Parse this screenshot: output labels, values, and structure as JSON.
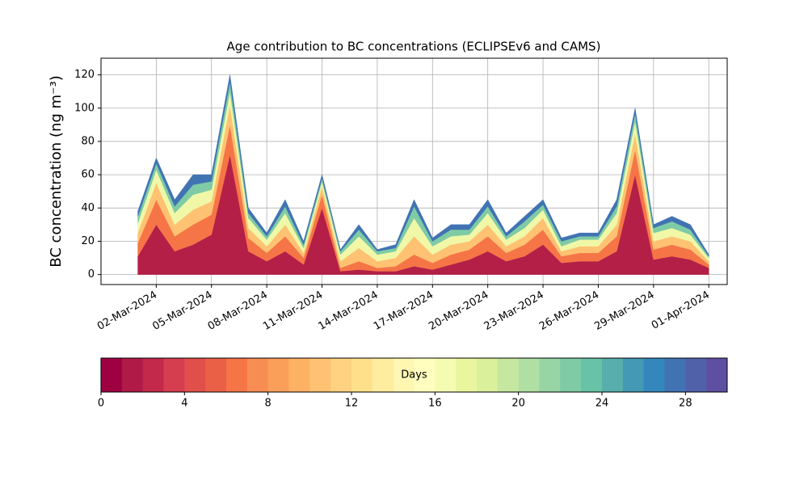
{
  "chart_data": {
    "type": "stacked_area",
    "title": "Age contribution to BC concentrations (ECLIPSEv6 and CAMS)",
    "y_label": "BC concentration (ng m⁻³)",
    "x": [
      "2024-03-01",
      "2024-03-02",
      "2024-03-03",
      "2024-03-04",
      "2024-03-05",
      "2024-03-06",
      "2024-03-07",
      "2024-03-08",
      "2024-03-09",
      "2024-03-10",
      "2024-03-11",
      "2024-03-12",
      "2024-03-13",
      "2024-03-14",
      "2024-03-15",
      "2024-03-16",
      "2024-03-17",
      "2024-03-18",
      "2024-03-19",
      "2024-03-20",
      "2024-03-21",
      "2024-03-22",
      "2024-03-23",
      "2024-03-24",
      "2024-03-25",
      "2024-03-26",
      "2024-03-27",
      "2024-03-28",
      "2024-03-29",
      "2024-03-30",
      "2024-03-31",
      "2024-04-01"
    ],
    "series": [
      {
        "color": "#b41f48",
        "values": [
          11,
          30,
          14,
          18,
          24,
          72,
          14,
          8,
          14,
          6,
          40,
          2,
          3,
          2,
          2,
          5,
          3,
          6,
          9,
          14,
          8,
          11,
          18,
          7,
          8,
          8,
          14,
          60,
          9,
          11,
          9,
          4
        ]
      },
      {
        "color": "#f57547",
        "values": [
          8,
          15,
          9,
          12,
          12,
          18,
          8,
          5,
          9,
          4,
          8,
          2,
          5,
          2,
          3,
          7,
          4,
          6,
          6,
          9,
          5,
          7,
          9,
          4,
          5,
          5,
          9,
          15,
          6,
          7,
          6,
          2
        ]
      },
      {
        "color": "#fec272",
        "values": [
          6,
          10,
          7,
          9,
          8,
          12,
          6,
          4,
          7,
          3,
          5,
          4,
          8,
          4,
          5,
          11,
          5,
          6,
          5,
          7,
          4,
          5,
          7,
          3,
          4,
          4,
          7,
          10,
          5,
          5,
          5,
          2
        ]
      },
      {
        "color": "#f0f8a8",
        "values": [
          6,
          8,
          7,
          9,
          7,
          8,
          6,
          4,
          7,
          3,
          3,
          4,
          7,
          4,
          4,
          11,
          5,
          5,
          4,
          7,
          4,
          5,
          5,
          3,
          4,
          4,
          7,
          7,
          5,
          5,
          4,
          2
        ]
      },
      {
        "color": "#7ecba5",
        "values": [
          4,
          4,
          4,
          6,
          5,
          6,
          3,
          2,
          4,
          2,
          2,
          2,
          4,
          2,
          2,
          7,
          3,
          4,
          3,
          4,
          2,
          4,
          3,
          3,
          2,
          2,
          4,
          5,
          3,
          4,
          3,
          1
        ]
      },
      {
        "color": "#4173b3",
        "values": [
          3,
          3,
          4,
          6,
          4,
          4,
          3,
          2,
          4,
          2,
          2,
          1,
          3,
          1,
          2,
          4,
          2,
          3,
          3,
          4,
          2,
          3,
          3,
          2,
          2,
          2,
          4,
          3,
          2,
          3,
          3,
          1
        ]
      }
    ],
    "xlim": [
      "2024-02-28",
      "2024-04-02"
    ],
    "xticks": [
      {
        "value": "2024-03-02",
        "label": "02-Mar-2024"
      },
      {
        "value": "2024-03-05",
        "label": "05-Mar-2024"
      },
      {
        "value": "2024-03-08",
        "label": "08-Mar-2024"
      },
      {
        "value": "2024-03-11",
        "label": "11-Mar-2024"
      },
      {
        "value": "2024-03-14",
        "label": "14-Mar-2024"
      },
      {
        "value": "2024-03-17",
        "label": "17-Mar-2024"
      },
      {
        "value": "2024-03-20",
        "label": "20-Mar-2024"
      },
      {
        "value": "2024-03-23",
        "label": "23-Mar-2024"
      },
      {
        "value": "2024-03-26",
        "label": "26-Mar-2024"
      },
      {
        "value": "2024-03-29",
        "label": "29-Mar-2024"
      },
      {
        "value": "2024-04-01",
        "label": "01-Apr-2024"
      }
    ],
    "ylim": [
      -6,
      130
    ],
    "yticks": [
      0,
      20,
      40,
      60,
      80,
      100,
      120
    ],
    "grid": true,
    "colorbar": {
      "label": "Days",
      "lim": [
        0,
        30
      ],
      "ticks": [
        0,
        4,
        8,
        12,
        16,
        20,
        24,
        28
      ],
      "colors": [
        "#9e0142",
        "#b01a47",
        "#c2294a",
        "#d53e4f",
        "#e04f4a",
        "#ea6046",
        "#f57547",
        "#f88d52",
        "#fa9f5a",
        "#fdb163",
        "#fec272",
        "#fed281",
        "#fee08b",
        "#feec9f",
        "#fff6b2",
        "#fffebe",
        "#f6fbb2",
        "#eaf69e",
        "#dbf09a",
        "#c5e79f",
        "#b0dfa3",
        "#98d5a4",
        "#7ecba5",
        "#68c2a5",
        "#57aeac",
        "#4499b4",
        "#3487bc",
        "#4173b3",
        "#5061aa",
        "#5e4fa2"
      ]
    }
  }
}
